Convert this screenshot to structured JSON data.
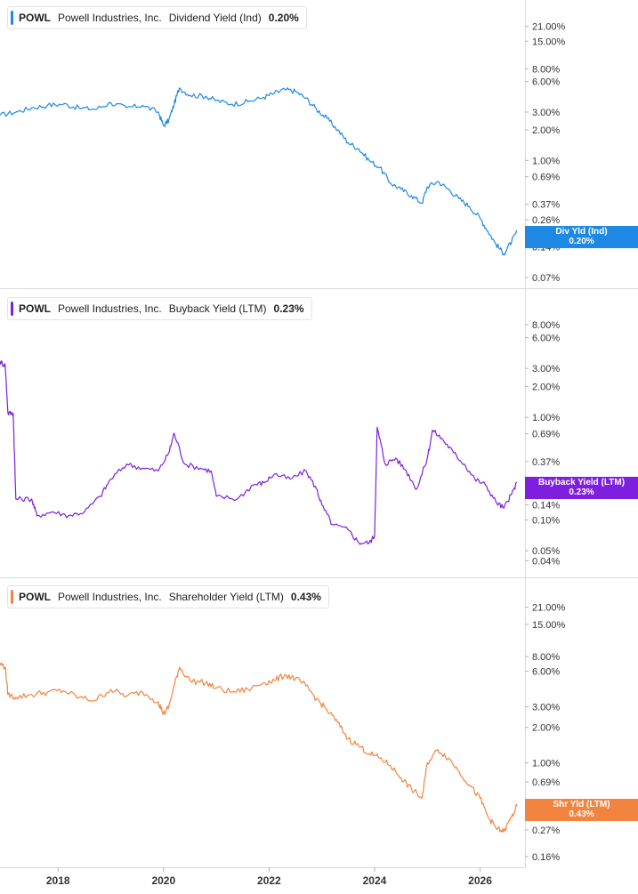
{
  "colors": {
    "dividend": "#1e88e5",
    "buyback": "#7e1fe0",
    "shareholder": "#f2843f",
    "axis_text": "#333333",
    "divider": "#d9d9d9"
  },
  "x_ticks": [
    "2018",
    "2020",
    "2022",
    "2024",
    "2026"
  ],
  "chart_data": [
    {
      "type": "line",
      "legend": {
        "ticker": "POWL",
        "company": "Powell Industries, Inc.",
        "metric": "Dividend Yield (Ind)",
        "value": "0.20%"
      },
      "tag": {
        "label": "Div Yld (Ind)",
        "value": "0.20%"
      },
      "y_scale": "log",
      "y_ticks": [
        "21.00%",
        "15.00%",
        "8.00%",
        "6.00%",
        "3.00%",
        "2.00%",
        "1.00%",
        "0.69%",
        "0.37%",
        "0.26%",
        "0.14%",
        "0.07%"
      ],
      "ylim": [
        0.07,
        30
      ],
      "xlim": [
        2016.9,
        2026.75
      ],
      "series": [
        {
          "x": [
            2016.9,
            2017.2,
            2017.5,
            2017.8,
            2018.1,
            2018.4,
            2018.7,
            2019.0,
            2019.3,
            2019.6,
            2019.9,
            2020.0,
            2020.1,
            2020.2,
            2020.3,
            2020.5,
            2020.8,
            2021.0,
            2021.3,
            2021.6,
            2021.9,
            2022.1,
            2022.3,
            2022.5,
            2022.7,
            2022.9,
            2023.1,
            2023.3,
            2023.5,
            2023.7,
            2023.9,
            2024.1,
            2024.3,
            2024.5,
            2024.7,
            2024.9,
            2025.0,
            2025.2,
            2025.4,
            2025.6,
            2025.8,
            2026.0,
            2026.15,
            2026.3,
            2026.45,
            2026.6,
            2026.7
          ],
          "values": [
            2.8,
            3.0,
            3.3,
            3.5,
            3.6,
            3.3,
            3.2,
            3.7,
            3.3,
            3.5,
            3.0,
            2.2,
            2.5,
            3.6,
            5.2,
            4.4,
            4.3,
            3.9,
            3.6,
            3.8,
            4.2,
            4.6,
            5.0,
            4.8,
            4.1,
            3.2,
            2.6,
            2.0,
            1.5,
            1.3,
            1.0,
            0.85,
            0.6,
            0.52,
            0.45,
            0.38,
            0.55,
            0.62,
            0.52,
            0.42,
            0.35,
            0.27,
            0.2,
            0.15,
            0.12,
            0.16,
            0.2
          ]
        }
      ]
    },
    {
      "type": "line",
      "legend": {
        "ticker": "POWL",
        "company": "Powell Industries, Inc.",
        "metric": "Buyback Yield (LTM)",
        "value": "0.23%"
      },
      "tag": {
        "label": "Buyback Yield (LTM)",
        "value": "0.23%"
      },
      "y_scale": "log",
      "y_ticks": [
        "8.00%",
        "6.00%",
        "3.00%",
        "2.00%",
        "1.00%",
        "0.69%",
        "0.37%",
        "0.14%",
        "0.10%",
        "0.05%",
        "0.04%"
      ],
      "ylim": [
        0.035,
        14
      ],
      "xlim": [
        2016.9,
        2026.75
      ],
      "series": [
        {
          "x": [
            2016.9,
            2017.0,
            2017.05,
            2017.15,
            2017.2,
            2017.5,
            2017.6,
            2017.9,
            2018.2,
            2018.5,
            2018.8,
            2019.0,
            2019.3,
            2019.6,
            2019.9,
            2020.1,
            2020.2,
            2020.4,
            2020.7,
            2020.9,
            2021.0,
            2021.4,
            2021.7,
            2021.9,
            2022.1,
            2022.4,
            2022.7,
            2022.9,
            2023.0,
            2023.2,
            2023.5,
            2023.7,
            2023.9,
            2024.0,
            2024.05,
            2024.2,
            2024.4,
            2024.6,
            2024.8,
            2025.0,
            2025.1,
            2025.3,
            2025.5,
            2025.7,
            2025.9,
            2026.1,
            2026.3,
            2026.45,
            2026.6,
            2026.7
          ],
          "values": [
            3.5,
            3.2,
            1.1,
            1.1,
            0.16,
            0.16,
            0.11,
            0.12,
            0.11,
            0.12,
            0.17,
            0.25,
            0.35,
            0.32,
            0.3,
            0.45,
            0.7,
            0.35,
            0.32,
            0.3,
            0.17,
            0.16,
            0.22,
            0.23,
            0.28,
            0.25,
            0.3,
            0.2,
            0.14,
            0.09,
            0.08,
            0.06,
            0.06,
            0.07,
            0.8,
            0.35,
            0.4,
            0.3,
            0.2,
            0.4,
            0.75,
            0.6,
            0.45,
            0.35,
            0.25,
            0.22,
            0.15,
            0.13,
            0.18,
            0.23
          ]
        }
      ]
    },
    {
      "type": "line",
      "legend": {
        "ticker": "POWL",
        "company": "Powell Industries, Inc.",
        "metric": "Shareholder Yield (LTM)",
        "value": "0.43%"
      },
      "tag": {
        "label": "Shr Yld (LTM)",
        "value": "0.43%"
      },
      "y_scale": "log",
      "y_ticks": [
        "21.00%",
        "15.00%",
        "8.00%",
        "6.00%",
        "3.00%",
        "2.00%",
        "1.00%",
        "0.69%",
        "0.37%",
        "0.27%",
        "0.16%"
      ],
      "ylim": [
        0.16,
        30
      ],
      "xlim": [
        2016.9,
        2026.75
      ],
      "series": [
        {
          "x": [
            2016.9,
            2017.0,
            2017.05,
            2017.2,
            2017.5,
            2017.8,
            2018.1,
            2018.4,
            2018.7,
            2019.0,
            2019.3,
            2019.6,
            2019.9,
            2020.0,
            2020.1,
            2020.2,
            2020.3,
            2020.5,
            2020.8,
            2021.0,
            2021.3,
            2021.6,
            2021.9,
            2022.1,
            2022.3,
            2022.5,
            2022.7,
            2022.9,
            2023.1,
            2023.3,
            2023.5,
            2023.7,
            2023.9,
            2024.1,
            2024.3,
            2024.5,
            2024.7,
            2024.9,
            2025.0,
            2025.2,
            2025.4,
            2025.6,
            2025.8,
            2026.0,
            2026.15,
            2026.3,
            2026.45,
            2026.6,
            2026.7
          ],
          "values": [
            7.0,
            6.5,
            3.8,
            3.6,
            3.8,
            4.0,
            4.1,
            3.6,
            3.4,
            4.2,
            3.7,
            4.0,
            3.3,
            2.6,
            3.0,
            4.5,
            6.5,
            5.0,
            4.8,
            4.3,
            4.0,
            4.2,
            4.8,
            5.0,
            5.6,
            5.2,
            4.5,
            3.5,
            2.8,
            2.2,
            1.6,
            1.4,
            1.2,
            1.1,
            0.95,
            0.75,
            0.6,
            0.5,
            1.0,
            1.3,
            1.1,
            0.85,
            0.65,
            0.5,
            0.35,
            0.28,
            0.26,
            0.35,
            0.43
          ]
        }
      ]
    }
  ]
}
